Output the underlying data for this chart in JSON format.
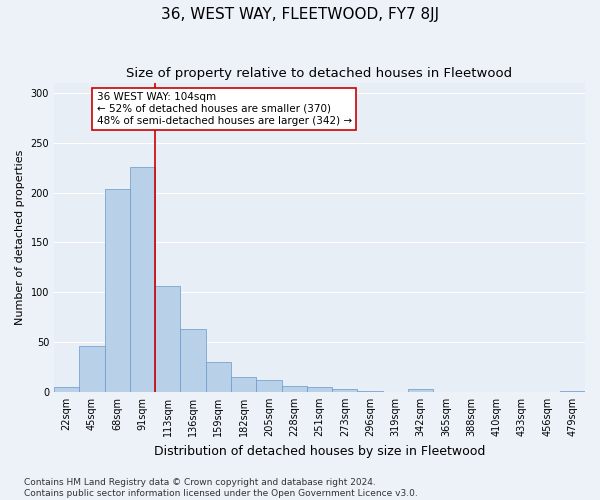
{
  "title": "36, WEST WAY, FLEETWOOD, FY7 8JJ",
  "subtitle": "Size of property relative to detached houses in Fleetwood",
  "xlabel": "Distribution of detached houses by size in Fleetwood",
  "ylabel": "Number of detached properties",
  "categories": [
    "22sqm",
    "45sqm",
    "68sqm",
    "91sqm",
    "113sqm",
    "136sqm",
    "159sqm",
    "182sqm",
    "205sqm",
    "228sqm",
    "251sqm",
    "273sqm",
    "296sqm",
    "319sqm",
    "342sqm",
    "365sqm",
    "388sqm",
    "410sqm",
    "433sqm",
    "456sqm",
    "479sqm"
  ],
  "values": [
    5,
    46,
    204,
    226,
    106,
    63,
    30,
    15,
    12,
    6,
    5,
    3,
    1,
    0,
    3,
    0,
    0,
    0,
    0,
    0,
    1
  ],
  "bar_color": "#b8d0e8",
  "bar_edge_color": "#6699cc",
  "vline_color": "#cc0000",
  "vline_x_index": 3.5,
  "annotation_box_text": "36 WEST WAY: 104sqm\n← 52% of detached houses are smaller (370)\n48% of semi-detached houses are larger (342) →",
  "footer_line1": "Contains HM Land Registry data © Crown copyright and database right 2024.",
  "footer_line2": "Contains public sector information licensed under the Open Government Licence v3.0.",
  "background_color": "#edf2f9",
  "plot_background_color": "#e8eef6",
  "grid_color": "#ffffff",
  "ylim": [
    0,
    310
  ],
  "title_fontsize": 11,
  "subtitle_fontsize": 9.5,
  "xlabel_fontsize": 9,
  "ylabel_fontsize": 8,
  "tick_fontsize": 7,
  "footer_fontsize": 6.5,
  "annotation_fontsize": 7.5
}
